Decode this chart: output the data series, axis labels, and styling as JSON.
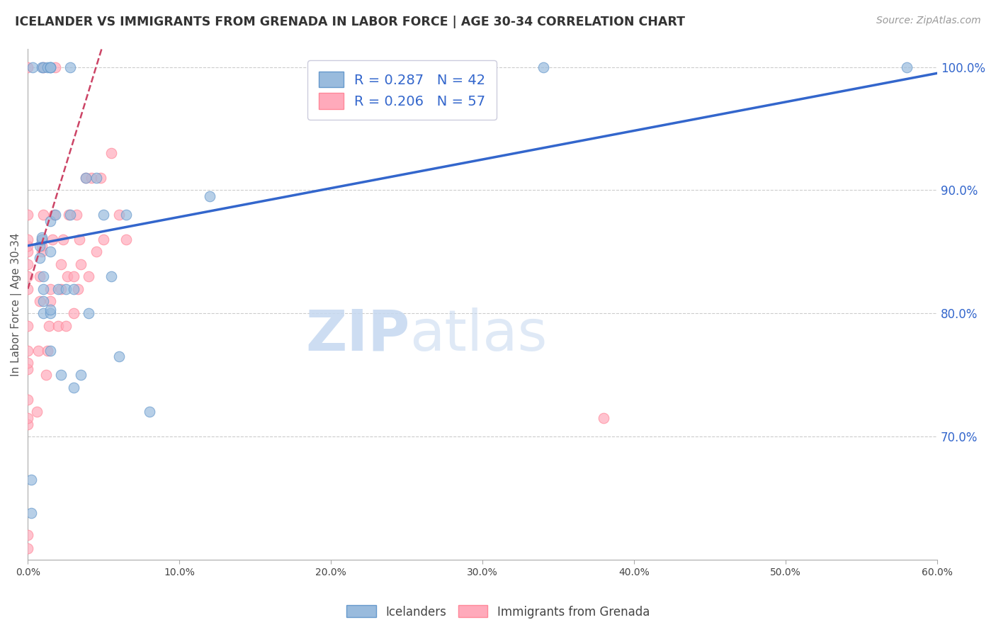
{
  "title": "ICELANDER VS IMMIGRANTS FROM GRENADA IN LABOR FORCE | AGE 30-34 CORRELATION CHART",
  "source_text": "Source: ZipAtlas.com",
  "ylabel": "In Labor Force | Age 30-34",
  "x_min": 0.0,
  "x_max": 0.6,
  "y_min": 0.6,
  "y_max": 1.015,
  "x_ticks": [
    0.0,
    0.1,
    0.2,
    0.3,
    0.4,
    0.5,
    0.6
  ],
  "x_tick_labels": [
    "0.0%",
    "10.0%",
    "20.0%",
    "30.0%",
    "40.0%",
    "50.0%",
    "60.0%"
  ],
  "y_ticks_right": [
    0.7,
    0.8,
    0.9,
    1.0
  ],
  "y_tick_labels_right": [
    "70.0%",
    "80.0%",
    "90.0%",
    "100.0%"
  ],
  "grid_color": "#cccccc",
  "background_color": "#ffffff",
  "watermark_zip": "ZIP",
  "watermark_atlas": "atlas",
  "blue_color": "#99bbdd",
  "pink_color": "#ffaabb",
  "blue_edge": "#6699cc",
  "pink_edge": "#ff8899",
  "trend_blue": "#3366cc",
  "trend_pink": "#cc4466",
  "legend_label1": "R = 0.287   N = 42",
  "legend_label2": "R = 0.206   N = 57",
  "icelanders_x": [
    0.002,
    0.002,
    0.003,
    0.008,
    0.008,
    0.009,
    0.009,
    0.009,
    0.01,
    0.01,
    0.01,
    0.01,
    0.01,
    0.013,
    0.015,
    0.015,
    0.015,
    0.015,
    0.015,
    0.015,
    0.015,
    0.015,
    0.018,
    0.02,
    0.022,
    0.025,
    0.028,
    0.028,
    0.03,
    0.03,
    0.035,
    0.038,
    0.04,
    0.045,
    0.05,
    0.055,
    0.06,
    0.065,
    0.08,
    0.12,
    0.34,
    0.58
  ],
  "icelanders_y": [
    0.638,
    0.665,
    1.0,
    0.845,
    0.855,
    0.86,
    0.862,
    1.0,
    0.8,
    0.81,
    0.82,
    0.83,
    1.0,
    1.0,
    0.77,
    0.8,
    0.803,
    0.85,
    0.875,
    1.0,
    1.0,
    1.0,
    0.88,
    0.82,
    0.75,
    0.82,
    0.88,
    1.0,
    0.74,
    0.82,
    0.75,
    0.91,
    0.8,
    0.91,
    0.88,
    0.83,
    0.765,
    0.88,
    0.72,
    0.895,
    1.0,
    1.0
  ],
  "grenada_x": [
    0.0,
    0.0,
    0.0,
    0.0,
    0.0,
    0.0,
    0.0,
    0.0,
    0.0,
    0.0,
    0.0,
    0.0,
    0.0,
    0.0,
    0.0,
    0.0,
    0.0,
    0.006,
    0.007,
    0.008,
    0.008,
    0.009,
    0.009,
    0.009,
    0.01,
    0.01,
    0.012,
    0.013,
    0.014,
    0.015,
    0.015,
    0.016,
    0.017,
    0.018,
    0.02,
    0.022,
    0.022,
    0.023,
    0.025,
    0.026,
    0.027,
    0.03,
    0.03,
    0.032,
    0.033,
    0.034,
    0.035,
    0.038,
    0.04,
    0.042,
    0.045,
    0.048,
    0.05,
    0.055,
    0.06,
    0.065,
    0.38
  ],
  "grenada_y": [
    0.609,
    0.62,
    0.71,
    0.715,
    0.73,
    0.755,
    0.76,
    0.77,
    0.79,
    0.82,
    0.83,
    0.84,
    0.85,
    0.855,
    0.86,
    0.88,
    1.0,
    0.72,
    0.77,
    0.81,
    0.83,
    0.85,
    0.855,
    0.86,
    0.88,
    1.0,
    0.75,
    0.77,
    0.79,
    0.81,
    0.82,
    0.86,
    0.88,
    1.0,
    0.79,
    0.82,
    0.84,
    0.86,
    0.79,
    0.83,
    0.88,
    0.8,
    0.83,
    0.88,
    0.82,
    0.86,
    0.84,
    0.91,
    0.83,
    0.91,
    0.85,
    0.91,
    0.86,
    0.93,
    0.88,
    0.86,
    0.715
  ],
  "blue_trendline_x": [
    0.0,
    0.6
  ],
  "blue_trendline_y": [
    0.855,
    0.995
  ],
  "pink_trendline_x": [
    0.0,
    0.05
  ],
  "pink_trendline_y": [
    0.82,
    1.02
  ]
}
